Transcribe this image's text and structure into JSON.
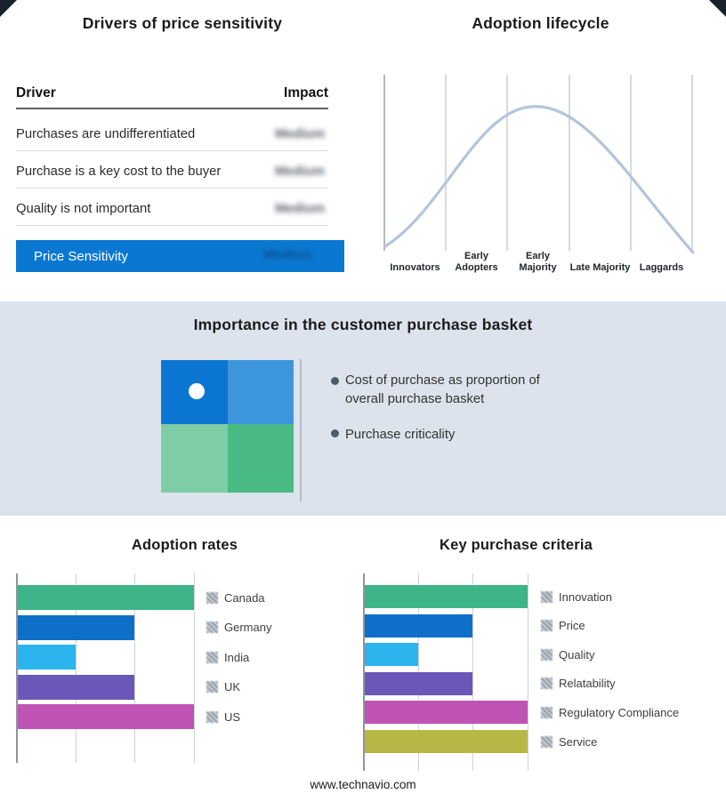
{
  "footer": {
    "url": "www.technavio.com"
  },
  "basket_panel": {
    "title": "Importance in the customer purchase basket",
    "bullets": [
      "Cost of purchase as proportion of overall purchase basket",
      "Purchase criticality"
    ],
    "quadrant_colors": {
      "top_left": "#0b76d1",
      "top_right": "#3d95dc",
      "bottom_left": "#7fcda6",
      "bottom_right": "#49ba82"
    }
  },
  "drivers_style": {
    "accent_color": "#0a78d1"
  },
  "lifecycle_style": {
    "curve_color": "#b2c5db",
    "grid_color": "#b9c1cb"
  },
  "chart_data": [
    {
      "type": "table",
      "title": "Drivers of price sensitivity",
      "columns": [
        "Driver",
        "Impact"
      ],
      "rows": [
        [
          "Purchases are undifferentiated",
          "Medium"
        ],
        [
          "Purchase is a key cost to the buyer",
          "Medium"
        ],
        [
          "Quality is not important",
          "Medium"
        ]
      ],
      "highlight_row": {
        "label": "Price Sensitivity",
        "value": "Medium"
      },
      "note": "impact values appear blurred in source image"
    },
    {
      "type": "line",
      "title": "Adoption lifecycle",
      "categories": [
        "Innovators",
        "Early Adopters",
        "Early Majority",
        "Late Majority",
        "Laggards"
      ],
      "shape": "bell curve peaking at Early Majority",
      "grid": true
    },
    {
      "type": "bar",
      "title": "Adoption rates",
      "orientation": "horizontal",
      "categories": [
        "Canada",
        "Germany",
        "India",
        "UK",
        "US"
      ],
      "values": [
        3,
        2,
        1,
        2,
        3
      ],
      "xlim": [
        0,
        3
      ],
      "colors": [
        "#3eb489",
        "#0d6fc8",
        "#2cb4ef",
        "#6b57b8",
        "#bf54b4"
      ],
      "legend_position": "right",
      "grid": true
    },
    {
      "type": "bar",
      "title": "Key purchase criteria",
      "orientation": "horizontal",
      "categories": [
        "Innovation",
        "Price",
        "Quality",
        "Relatability",
        "Regulatory Compliance",
        "Service"
      ],
      "values": [
        3,
        2,
        1,
        2,
        3,
        3
      ],
      "xlim": [
        0,
        3
      ],
      "colors": [
        "#3eb489",
        "#0d6fc8",
        "#2cb4ef",
        "#6b57b8",
        "#bf54b4",
        "#b6b845"
      ],
      "legend_position": "right",
      "grid": true
    }
  ]
}
